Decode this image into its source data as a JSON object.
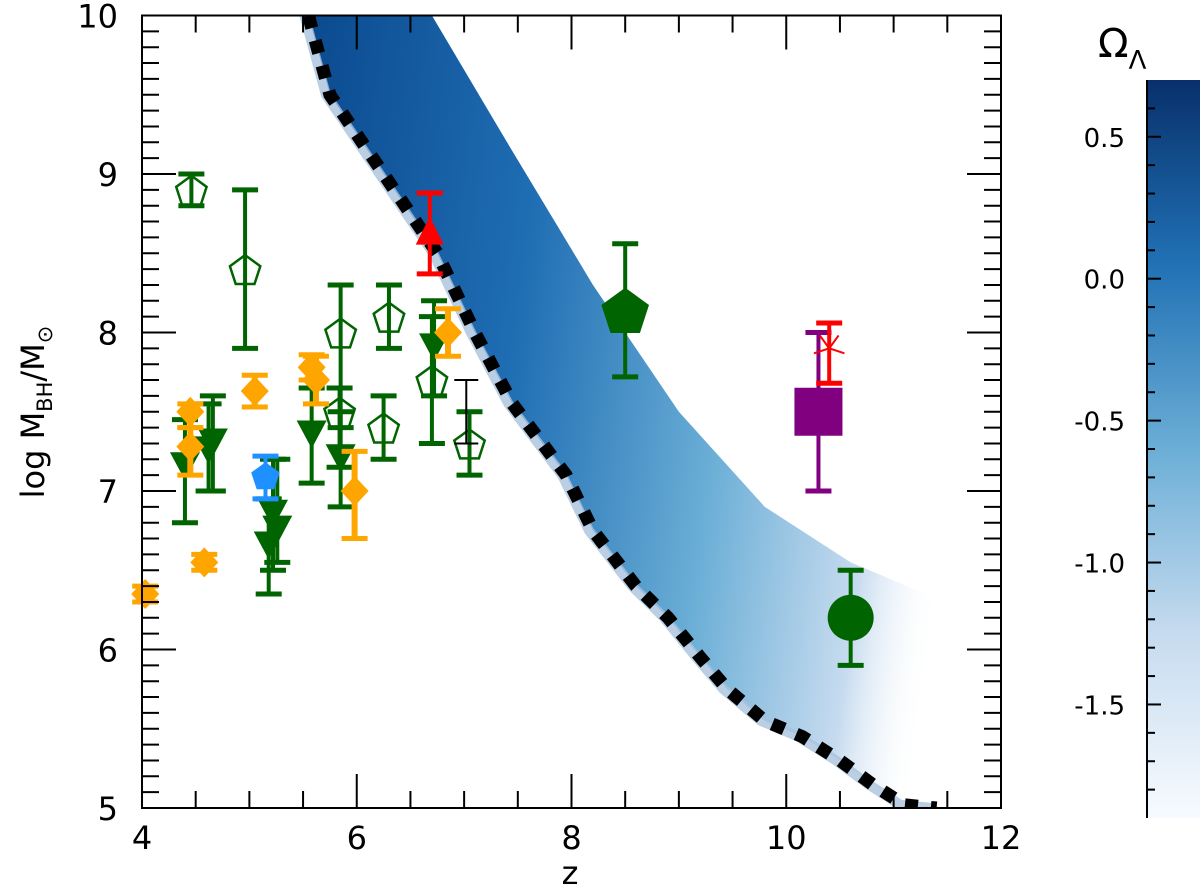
{
  "chart_data": {
    "type": "scatter",
    "title": "",
    "xlabel": "z",
    "ylabel": "log M_BH/M_sun",
    "ylabel_parts": {
      "prefix": "log M",
      "sub": "BH",
      "mid": "/M",
      "sun": "⊙"
    },
    "xlim": [
      4,
      12
    ],
    "ylim": [
      5,
      10
    ],
    "xticks": [
      4,
      6,
      8,
      10,
      12
    ],
    "yticks": [
      5,
      6,
      7,
      8,
      9,
      10
    ],
    "x_minor_step": 0.5,
    "y_minor_step": 0.1,
    "grid": false,
    "legend": null,
    "colorbar": {
      "label": "Ω",
      "label_sub": "Λ",
      "ticks": [
        0.5,
        0.0,
        -0.5,
        -1.0,
        -1.5
      ],
      "tick_labels": [
        "0.5",
        "0.0",
        "-0.5",
        "-1.0",
        "-1.5"
      ],
      "range": [
        -1.9,
        0.7
      ],
      "minor_step": 0.1,
      "colormap": "Blues",
      "color_low": "#f7fbff",
      "color_high": "#08306b"
    },
    "band": {
      "description": "Shaded model region colored by Omega_Lambda, bounded on the left by a dotted black curve",
      "lower_boundary_dotted": [
        {
          "z": 5.55,
          "m": 10.0
        },
        {
          "z": 5.75,
          "m": 9.5
        },
        {
          "z": 6.05,
          "m": 9.2
        },
        {
          "z": 6.4,
          "m": 8.85
        },
        {
          "z": 6.75,
          "m": 8.5
        },
        {
          "z": 7.1,
          "m": 8.0
        },
        {
          "z": 7.45,
          "m": 7.55
        },
        {
          "z": 7.95,
          "m": 7.1
        },
        {
          "z": 8.2,
          "m": 6.75
        },
        {
          "z": 8.6,
          "m": 6.4
        },
        {
          "z": 8.9,
          "m": 6.2
        },
        {
          "z": 9.2,
          "m": 5.95
        },
        {
          "z": 9.45,
          "m": 5.75
        },
        {
          "z": 9.8,
          "m": 5.55
        },
        {
          "z": 10.15,
          "m": 5.45
        },
        {
          "z": 10.5,
          "m": 5.3
        },
        {
          "z": 10.8,
          "m": 5.15
        },
        {
          "z": 11.1,
          "m": 5.02
        },
        {
          "z": 11.4,
          "m": 5.0
        }
      ],
      "upper_fade_boundary": [
        {
          "z": 6.7,
          "m": 10.0
        },
        {
          "z": 7.4,
          "m": 9.2
        },
        {
          "z": 8.2,
          "m": 8.3
        },
        {
          "z": 9.0,
          "m": 7.5
        },
        {
          "z": 9.8,
          "m": 6.9
        },
        {
          "z": 10.6,
          "m": 6.55
        },
        {
          "z": 11.3,
          "m": 6.35
        },
        {
          "z": 12.0,
          "m": 6.1
        }
      ]
    },
    "series": [
      {
        "name": "green open pentagons",
        "marker": "pentagon-open",
        "color": "#006400",
        "points": [
          {
            "x": 4.46,
            "y": 8.9,
            "ylo": 8.8,
            "yhi": 9.0
          },
          {
            "x": 4.96,
            "y": 8.4,
            "ylo": 7.9,
            "yhi": 8.9
          },
          {
            "x": 5.85,
            "y": 8.0,
            "ylo": 7.4,
            "yhi": 8.3
          },
          {
            "x": 5.84,
            "y": 7.5,
            "ylo": 7.15,
            "yhi": 7.65
          },
          {
            "x": 6.3,
            "y": 8.1,
            "ylo": 7.9,
            "yhi": 8.3
          },
          {
            "x": 6.25,
            "y": 7.4,
            "ylo": 7.2,
            "yhi": 7.6
          },
          {
            "x": 6.7,
            "y": 7.7,
            "ylo": 7.3,
            "yhi": 8.1
          },
          {
            "x": 7.05,
            "y": 7.3,
            "ylo": 7.1,
            "yhi": 7.5
          }
        ]
      },
      {
        "name": "green filled down-triangles",
        "marker": "triangle-down",
        "color": "#006400",
        "points": [
          {
            "x": 4.4,
            "y": 7.15,
            "ylo": 6.8,
            "yhi": 7.45
          },
          {
            "x": 4.62,
            "y": 7.25,
            "ylo": 7.0,
            "yhi": 7.55
          },
          {
            "x": 4.66,
            "y": 7.3,
            "ylo": 7.0,
            "yhi": 7.6
          },
          {
            "x": 5.18,
            "y": 6.65,
            "ylo": 6.35,
            "yhi": 6.95
          },
          {
            "x": 5.22,
            "y": 6.85,
            "ylo": 6.5,
            "yhi": 7.2
          },
          {
            "x": 5.26,
            "y": 6.75,
            "ylo": 6.55,
            "yhi": 7.2
          },
          {
            "x": 5.58,
            "y": 7.35,
            "ylo": 7.05,
            "yhi": 7.65
          },
          {
            "x": 5.85,
            "y": 7.2,
            "ylo": 6.9,
            "yhi": 7.5
          },
          {
            "x": 6.72,
            "y": 7.9,
            "ylo": 7.6,
            "yhi": 8.2
          }
        ]
      },
      {
        "name": "orange filled diamonds",
        "marker": "diamond",
        "color": "#ffa500",
        "points": [
          {
            "x": 4.03,
            "y": 6.35,
            "ylo": 6.3,
            "yhi": 6.4
          },
          {
            "x": 4.45,
            "y": 7.5,
            "ylo": 7.4,
            "yhi": 7.55
          },
          {
            "x": 4.45,
            "y": 7.28,
            "ylo": 7.1,
            "yhi": 7.4
          },
          {
            "x": 4.58,
            "y": 6.55,
            "ylo": 6.5,
            "yhi": 6.6
          },
          {
            "x": 5.05,
            "y": 7.63,
            "ylo": 7.53,
            "yhi": 7.73
          },
          {
            "x": 5.58,
            "y": 7.78,
            "ylo": 7.7,
            "yhi": 7.86
          },
          {
            "x": 5.62,
            "y": 7.7,
            "ylo": 7.55,
            "yhi": 7.85
          },
          {
            "x": 5.98,
            "y": 7.0,
            "ylo": 6.7,
            "yhi": 7.25
          },
          {
            "x": 6.85,
            "y": 8.0,
            "ylo": 7.85,
            "yhi": 8.15
          }
        ]
      },
      {
        "name": "blue pentagon",
        "marker": "pentagon",
        "color": "#1e90ff",
        "points": [
          {
            "x": 5.15,
            "y": 7.1,
            "ylo": 6.95,
            "yhi": 7.22
          }
        ]
      },
      {
        "name": "red up-triangle",
        "marker": "triangle-up",
        "color": "#ff0000",
        "points": [
          {
            "x": 6.68,
            "y": 8.63,
            "ylo": 8.37,
            "yhi": 8.88
          }
        ]
      },
      {
        "name": "green large pentagon",
        "marker": "pentagon-large",
        "color": "#006400",
        "points": [
          {
            "x": 8.5,
            "y": 8.15,
            "ylo": 7.72,
            "yhi": 8.56
          }
        ]
      },
      {
        "name": "purple square",
        "marker": "square",
        "color": "#800080",
        "points": [
          {
            "x": 10.3,
            "y": 7.5,
            "ylo": 7.0,
            "yhi": 8.0
          }
        ]
      },
      {
        "name": "red star",
        "marker": "star",
        "color": "#ff0000",
        "points": [
          {
            "x": 10.4,
            "y": 7.9,
            "ylo": 7.68,
            "yhi": 8.06
          }
        ]
      },
      {
        "name": "green circle",
        "marker": "circle",
        "color": "#006400",
        "points": [
          {
            "x": 10.6,
            "y": 6.2,
            "ylo": 5.9,
            "yhi": 6.5
          }
        ]
      },
      {
        "name": "black thin errorbar",
        "marker": "none",
        "color": "#000000",
        "points": [
          {
            "x": 7.02,
            "y": 7.4,
            "ylo": 7.3,
            "yhi": 7.7
          }
        ]
      }
    ]
  }
}
